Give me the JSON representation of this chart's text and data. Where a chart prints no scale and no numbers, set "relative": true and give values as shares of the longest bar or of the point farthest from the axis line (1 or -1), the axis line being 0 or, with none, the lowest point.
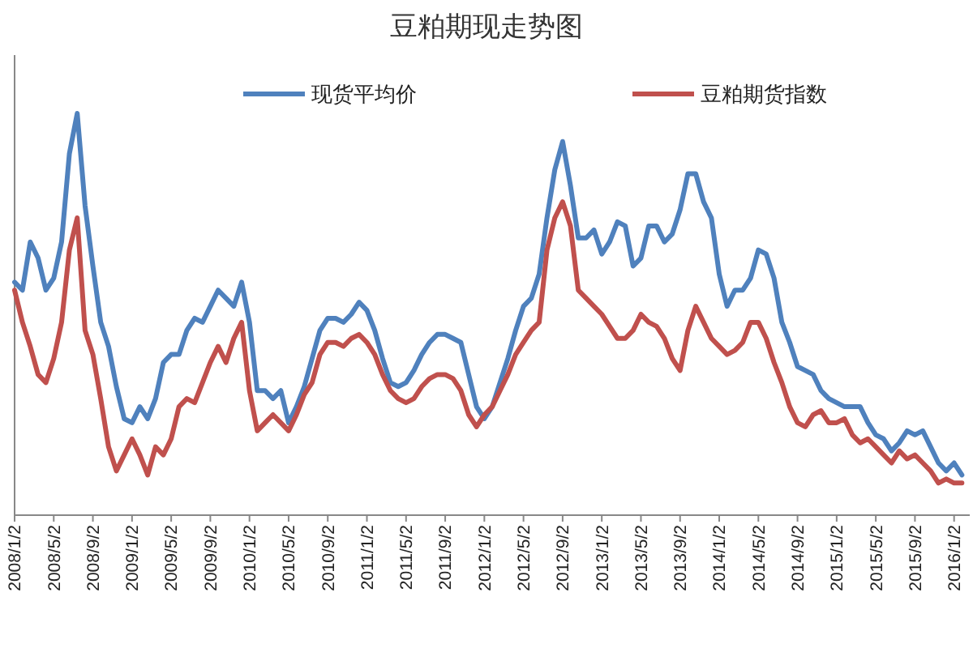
{
  "chart_data": {
    "type": "line",
    "title": "豆粕期现走势图",
    "relative": true,
    "legend": "top",
    "marker": "none",
    "line_style": "solid",
    "categories": [
      "2008/1/2",
      null,
      null,
      null,
      null,
      "2008/5/2",
      null,
      null,
      null,
      null,
      "2008/9/2",
      null,
      null,
      null,
      null,
      "2009/1/2",
      null,
      null,
      null,
      null,
      "2009/5/2",
      null,
      null,
      null,
      null,
      "2009/9/2",
      null,
      null,
      null,
      null,
      "2010/1/2",
      null,
      null,
      null,
      null,
      "2010/5/2",
      null,
      null,
      null,
      null,
      "2010/9/2",
      null,
      null,
      null,
      null,
      "2011/1/2",
      null,
      null,
      null,
      null,
      "2011/5/2",
      null,
      null,
      null,
      null,
      "2011/9/2",
      null,
      null,
      null,
      null,
      "2012/1/2",
      null,
      null,
      null,
      null,
      "2012/5/2",
      null,
      null,
      null,
      null,
      "2012/9/2",
      null,
      null,
      null,
      null,
      "2013/1/2",
      null,
      null,
      null,
      null,
      "2013/5/2",
      null,
      null,
      null,
      null,
      "2013/9/2",
      null,
      null,
      null,
      null,
      "2014/1/2",
      null,
      null,
      null,
      null,
      "2014/5/2",
      null,
      null,
      null,
      null,
      "2014/9/2",
      null,
      null,
      null,
      null,
      "2015/1/2",
      null,
      null,
      null,
      null,
      "2015/5/2",
      null,
      null,
      null,
      null,
      "2015/9/2",
      null,
      null,
      null,
      null,
      "2016/1/2",
      null
    ],
    "series": [
      {
        "name": "现货平均价",
        "color": "#4f81bd",
        "values": [
          0.58,
          0.56,
          0.68,
          0.64,
          0.56,
          0.59,
          0.68,
          0.9,
          1.0,
          0.77,
          0.62,
          0.48,
          0.42,
          0.32,
          0.24,
          0.23,
          0.27,
          0.24,
          0.29,
          0.38,
          0.4,
          0.4,
          0.46,
          0.49,
          0.48,
          0.52,
          0.56,
          0.54,
          0.52,
          0.58,
          0.48,
          0.31,
          0.31,
          0.29,
          0.31,
          0.23,
          0.27,
          0.32,
          0.39,
          0.46,
          0.49,
          0.49,
          0.48,
          0.5,
          0.53,
          0.51,
          0.46,
          0.39,
          0.33,
          0.32,
          0.33,
          0.36,
          0.4,
          0.43,
          0.45,
          0.45,
          0.44,
          0.43,
          0.35,
          0.27,
          0.24,
          0.27,
          0.33,
          0.39,
          0.46,
          0.52,
          0.54,
          0.6,
          0.74,
          0.86,
          0.93,
          0.82,
          0.69,
          0.69,
          0.71,
          0.65,
          0.68,
          0.73,
          0.72,
          0.62,
          0.64,
          0.72,
          0.72,
          0.68,
          0.7,
          0.76,
          0.85,
          0.85,
          0.78,
          0.74,
          0.6,
          0.52,
          0.56,
          0.56,
          0.59,
          0.66,
          0.65,
          0.59,
          0.48,
          0.43,
          0.37,
          0.36,
          0.35,
          0.31,
          0.29,
          0.28,
          0.27,
          0.27,
          0.27,
          0.23,
          0.2,
          0.19,
          0.16,
          0.18,
          0.21,
          0.2,
          0.21,
          0.17,
          0.13,
          0.11,
          0.13,
          0.1
        ]
      },
      {
        "name": "豆粕期货指数",
        "color": "#c0504d",
        "values": [
          0.56,
          0.48,
          0.42,
          0.35,
          0.33,
          0.39,
          0.48,
          0.66,
          0.74,
          0.46,
          0.4,
          0.29,
          0.17,
          0.11,
          0.15,
          0.19,
          0.15,
          0.1,
          0.17,
          0.15,
          0.19,
          0.27,
          0.29,
          0.28,
          0.33,
          0.38,
          0.42,
          0.38,
          0.44,
          0.48,
          0.31,
          0.21,
          0.23,
          0.25,
          0.23,
          0.21,
          0.25,
          0.3,
          0.33,
          0.4,
          0.43,
          0.43,
          0.42,
          0.44,
          0.45,
          0.43,
          0.4,
          0.35,
          0.31,
          0.29,
          0.28,
          0.29,
          0.32,
          0.34,
          0.35,
          0.35,
          0.34,
          0.31,
          0.25,
          0.22,
          0.25,
          0.27,
          0.31,
          0.35,
          0.4,
          0.43,
          0.46,
          0.48,
          0.66,
          0.74,
          0.78,
          0.72,
          0.56,
          0.54,
          0.52,
          0.5,
          0.47,
          0.44,
          0.44,
          0.46,
          0.5,
          0.48,
          0.47,
          0.44,
          0.39,
          0.36,
          0.46,
          0.52,
          0.48,
          0.44,
          0.42,
          0.4,
          0.41,
          0.43,
          0.48,
          0.48,
          0.44,
          0.38,
          0.33,
          0.27,
          0.23,
          0.22,
          0.25,
          0.26,
          0.23,
          0.23,
          0.24,
          0.2,
          0.18,
          0.19,
          0.17,
          0.15,
          0.13,
          0.16,
          0.14,
          0.15,
          0.13,
          0.11,
          0.08,
          0.09,
          0.08,
          0.08
        ]
      }
    ]
  }
}
